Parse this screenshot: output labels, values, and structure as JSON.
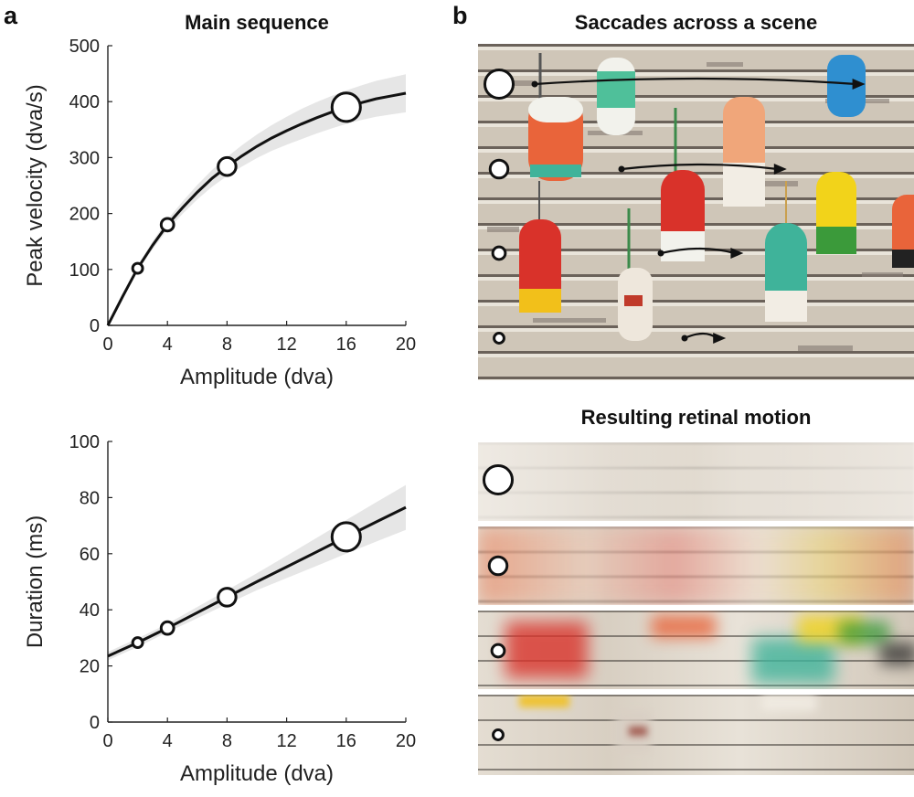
{
  "panels": {
    "a": {
      "letter": "a",
      "title": "Main sequence"
    },
    "b": {
      "letter": "b",
      "title_top": "Saccades across a scene",
      "title_bottom": "Resulting retinal motion"
    }
  },
  "chart_data": [
    {
      "type": "line",
      "title": "Main sequence",
      "xlabel": "Amplitude (dva)",
      "ylabel": "Peak velocity (dva/s)",
      "xlim": [
        0,
        20
      ],
      "ylim": [
        0,
        500
      ],
      "xticks": [
        0,
        4,
        8,
        12,
        16,
        20
      ],
      "yticks": [
        0,
        100,
        200,
        300,
        400,
        500
      ],
      "curve": {
        "x": [
          0,
          1,
          2,
          3,
          4,
          5,
          6,
          7,
          8,
          9,
          10,
          11,
          12,
          13,
          14,
          15,
          16,
          17,
          18,
          19,
          20
        ],
        "y": [
          0,
          52,
          102,
          143,
          180,
          210,
          238,
          263,
          284,
          303,
          320,
          335,
          348,
          360,
          371,
          381,
          390,
          398,
          405,
          410,
          415
        ]
      },
      "band_halfwidth": [
        0,
        3,
        5,
        7,
        9,
        11,
        13,
        15,
        17,
        19,
        21,
        23,
        25,
        27,
        28,
        29,
        30,
        31,
        32,
        33,
        34
      ],
      "points": {
        "x": [
          2,
          4,
          8,
          16
        ],
        "y": [
          102,
          180,
          284,
          390
        ]
      },
      "grid": false,
      "legend": "none"
    },
    {
      "type": "line",
      "xlabel": "Amplitude (dva)",
      "ylabel": "Duration (ms)",
      "xlim": [
        0,
        20
      ],
      "ylim": [
        0,
        100
      ],
      "xticks": [
        0,
        4,
        8,
        12,
        16,
        20
      ],
      "yticks": [
        0,
        20,
        40,
        60,
        80,
        100
      ],
      "curve": {
        "x": [
          0,
          2,
          4,
          6,
          8,
          10,
          12,
          14,
          16,
          18,
          20
        ],
        "y": [
          23.5,
          28.3,
          33.5,
          39.0,
          44.5,
          50.0,
          55.3,
          60.6,
          66.0,
          71.3,
          76.5
        ]
      },
      "band_halfwidth": [
        1.5,
        1.5,
        1.5,
        2,
        2.5,
        3,
        4,
        5,
        6,
        7,
        8
      ],
      "points": {
        "x": [
          2,
          4,
          8,
          16
        ],
        "y": [
          28.3,
          33.5,
          44.5,
          66.0
        ]
      },
      "grid": false,
      "legend": "none"
    }
  ],
  "scene": {
    "saccade_arrows": [
      {
        "amplitude": 16
      },
      {
        "amplitude": 8
      },
      {
        "amplitude": 4
      },
      {
        "amplitude": 2
      }
    ],
    "buoy_colors": [
      "#e9643a",
      "#f2f2ec",
      "#3fb39a",
      "#d9322a",
      "#f2d31a",
      "#2f8fd0",
      "#e98a3a",
      "#3b9a3a"
    ]
  },
  "retinal_strips": [
    {
      "amplitude": 16
    },
    {
      "amplitude": 8
    },
    {
      "amplitude": 4
    },
    {
      "amplitude": 2
    }
  ]
}
